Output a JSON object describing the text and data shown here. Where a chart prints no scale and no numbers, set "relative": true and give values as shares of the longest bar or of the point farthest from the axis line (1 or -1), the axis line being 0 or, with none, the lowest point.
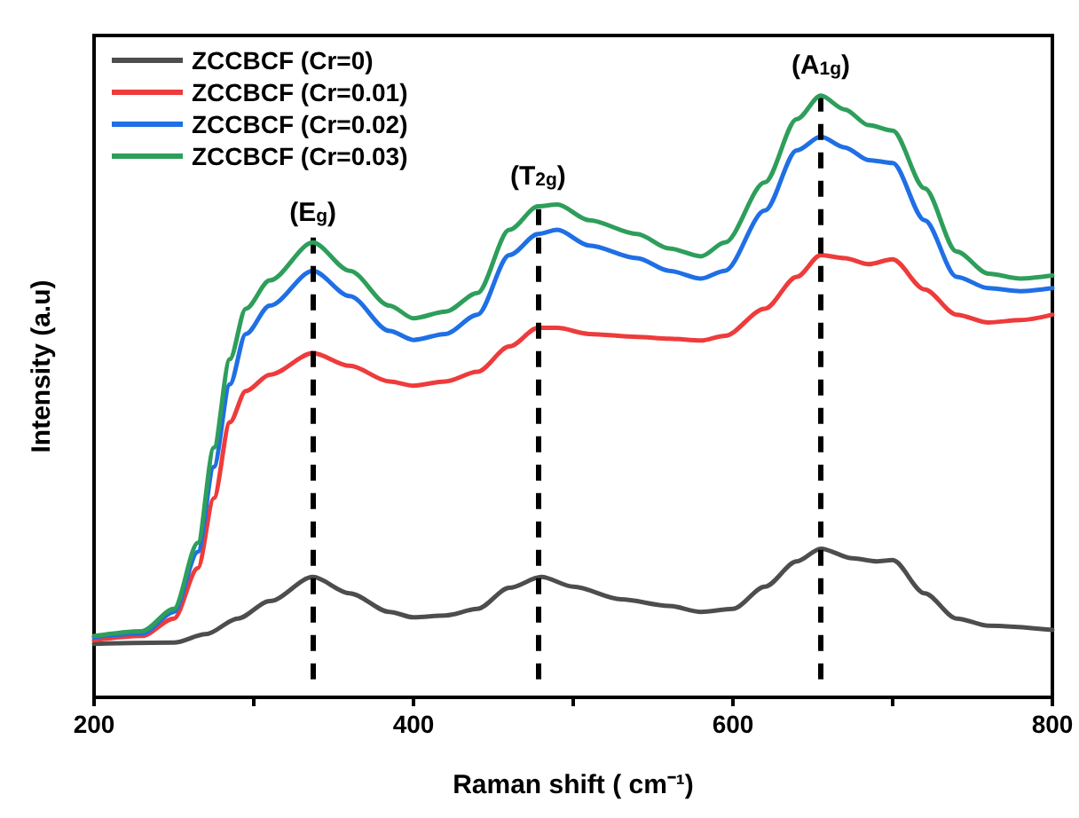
{
  "chart_data": {
    "type": "line",
    "relative": true,
    "xlabel": "Raman shift ( cm⁻¹)",
    "ylabel": "Intensity (a.u)",
    "xlim": [
      200,
      800
    ],
    "xticks": [
      200,
      {
        "value": 300,
        "label": null
      },
      400,
      {
        "value": 500,
        "label": null
      },
      600,
      {
        "value": 700,
        "label": null
      },
      800
    ],
    "tick_labels": "x",
    "grid": false,
    "legend": "top left",
    "marker": "none",
    "line_style": "solid",
    "ref_lines": [
      {
        "axis": "x",
        "value": 337,
        "label": "(E$_{g}$)",
        "color": "#000000",
        "line_style": "dashed"
      },
      {
        "axis": "x",
        "value": 478,
        "label": "(T$_{2g}$)",
        "color": "#000000",
        "line_style": "dashed"
      },
      {
        "axis": "x",
        "value": 655,
        "label": "(A$_{1g}$)",
        "color": "#000000",
        "line_style": "dashed"
      }
    ],
    "series": [
      {
        "name": "ZCCBCF (Cr=0)",
        "color": "#4d4d4d",
        "x": [
          200,
          250,
          270,
          290,
          310,
          337,
          360,
          385,
          400,
          420,
          440,
          460,
          480,
          500,
          530,
          560,
          580,
          600,
          620,
          640,
          655,
          675,
          690,
          700,
          720,
          740,
          760,
          800
        ],
        "values": [
          0.089,
          0.091,
          0.105,
          0.131,
          0.16,
          0.2,
          0.173,
          0.142,
          0.133,
          0.136,
          0.147,
          0.182,
          0.2,
          0.184,
          0.163,
          0.152,
          0.142,
          0.147,
          0.184,
          0.226,
          0.247,
          0.231,
          0.226,
          0.228,
          0.173,
          0.131,
          0.119,
          0.112
        ]
      },
      {
        "name": "ZCCBCF (Cr=0.01)",
        "color": "#ee3b3b",
        "x": [
          200,
          230,
          250,
          265,
          275,
          285,
          295,
          310,
          337,
          360,
          385,
          400,
          420,
          440,
          460,
          478,
          490,
          510,
          540,
          560,
          580,
          595,
          620,
          640,
          655,
          670,
          685,
          700,
          720,
          740,
          760,
          780,
          800
        ],
        "values": [
          0.095,
          0.102,
          0.131,
          0.215,
          0.331,
          0.457,
          0.509,
          0.536,
          0.572,
          0.551,
          0.525,
          0.518,
          0.525,
          0.541,
          0.583,
          0.614,
          0.614,
          0.604,
          0.599,
          0.596,
          0.593,
          0.601,
          0.646,
          0.699,
          0.735,
          0.73,
          0.72,
          0.728,
          0.678,
          0.636,
          0.623,
          0.627,
          0.636
        ]
      },
      {
        "name": "ZCCBCF (Cr=0.02)",
        "color": "#1f6fe5",
        "x": [
          200,
          230,
          250,
          265,
          275,
          285,
          295,
          310,
          337,
          360,
          385,
          400,
          420,
          440,
          460,
          478,
          490,
          510,
          540,
          560,
          580,
          595,
          620,
          640,
          655,
          670,
          685,
          700,
          720,
          740,
          760,
          780,
          800
        ],
        "values": [
          0.1,
          0.106,
          0.142,
          0.242,
          0.383,
          0.52,
          0.604,
          0.651,
          0.709,
          0.667,
          0.609,
          0.594,
          0.604,
          0.636,
          0.735,
          0.77,
          0.777,
          0.751,
          0.73,
          0.709,
          0.696,
          0.709,
          0.809,
          0.909,
          0.932,
          0.914,
          0.893,
          0.888,
          0.793,
          0.699,
          0.68,
          0.675,
          0.68
        ]
      },
      {
        "name": "ZCCBCF (Cr=0.03)",
        "color": "#2e9e5b",
        "x": [
          200,
          230,
          250,
          265,
          275,
          285,
          295,
          310,
          337,
          360,
          385,
          400,
          420,
          440,
          460,
          478,
          490,
          510,
          540,
          560,
          580,
          595,
          620,
          640,
          655,
          670,
          685,
          700,
          720,
          740,
          760,
          780,
          800
        ],
        "values": [
          0.102,
          0.11,
          0.147,
          0.257,
          0.415,
          0.562,
          0.646,
          0.693,
          0.756,
          0.709,
          0.651,
          0.63,
          0.641,
          0.672,
          0.777,
          0.816,
          0.819,
          0.793,
          0.77,
          0.746,
          0.733,
          0.756,
          0.856,
          0.961,
          1.0,
          0.977,
          0.951,
          0.942,
          0.846,
          0.741,
          0.704,
          0.696,
          0.701
        ]
      }
    ]
  }
}
